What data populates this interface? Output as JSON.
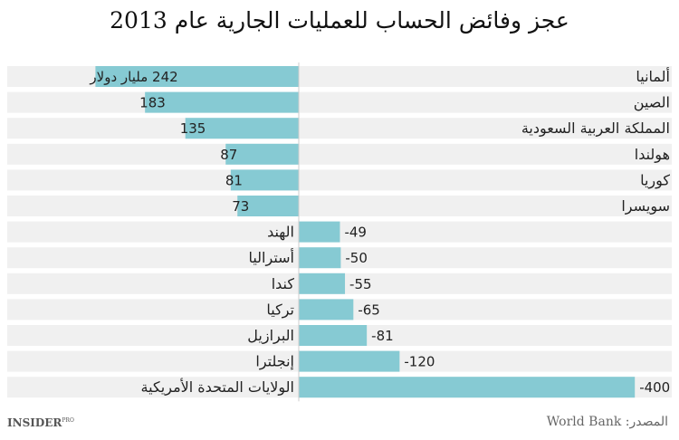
{
  "chart_data": {
    "type": "bar",
    "orientation": "horizontal",
    "title": "عجز وفائض الحساب للعمليات الجارية عام 2013",
    "unit_label": "مليار دولار",
    "categories": [
      "ألمانيا",
      "الصين",
      "المملكة العربية السعودية",
      "هولندا",
      "كوريا",
      "سويسرا",
      "الهند",
      "أستراليا",
      "كندا",
      "تركيا",
      "البرازيل",
      "إنجلترا",
      "الولايات المتحدة الأمريكية"
    ],
    "values": [
      242,
      183,
      135,
      87,
      81,
      73,
      -49,
      -50,
      -55,
      -65,
      -81,
      -120,
      -400
    ],
    "value_labels": [
      "242 مليار دولار",
      "183",
      "135",
      "87",
      "81",
      "73",
      "-49",
      "-50",
      "-55",
      "-65",
      "-81",
      "-120",
      "-400"
    ],
    "xlim": [
      242,
      -400
    ],
    "direction": "positive values extend left, negative extend right",
    "grid": false,
    "bar_color": "#86cad3",
    "row_background": "#f0f0f0"
  },
  "source": "المصدر: World Bank",
  "logo": {
    "main": "INSIDER",
    "sup": "PRO"
  }
}
